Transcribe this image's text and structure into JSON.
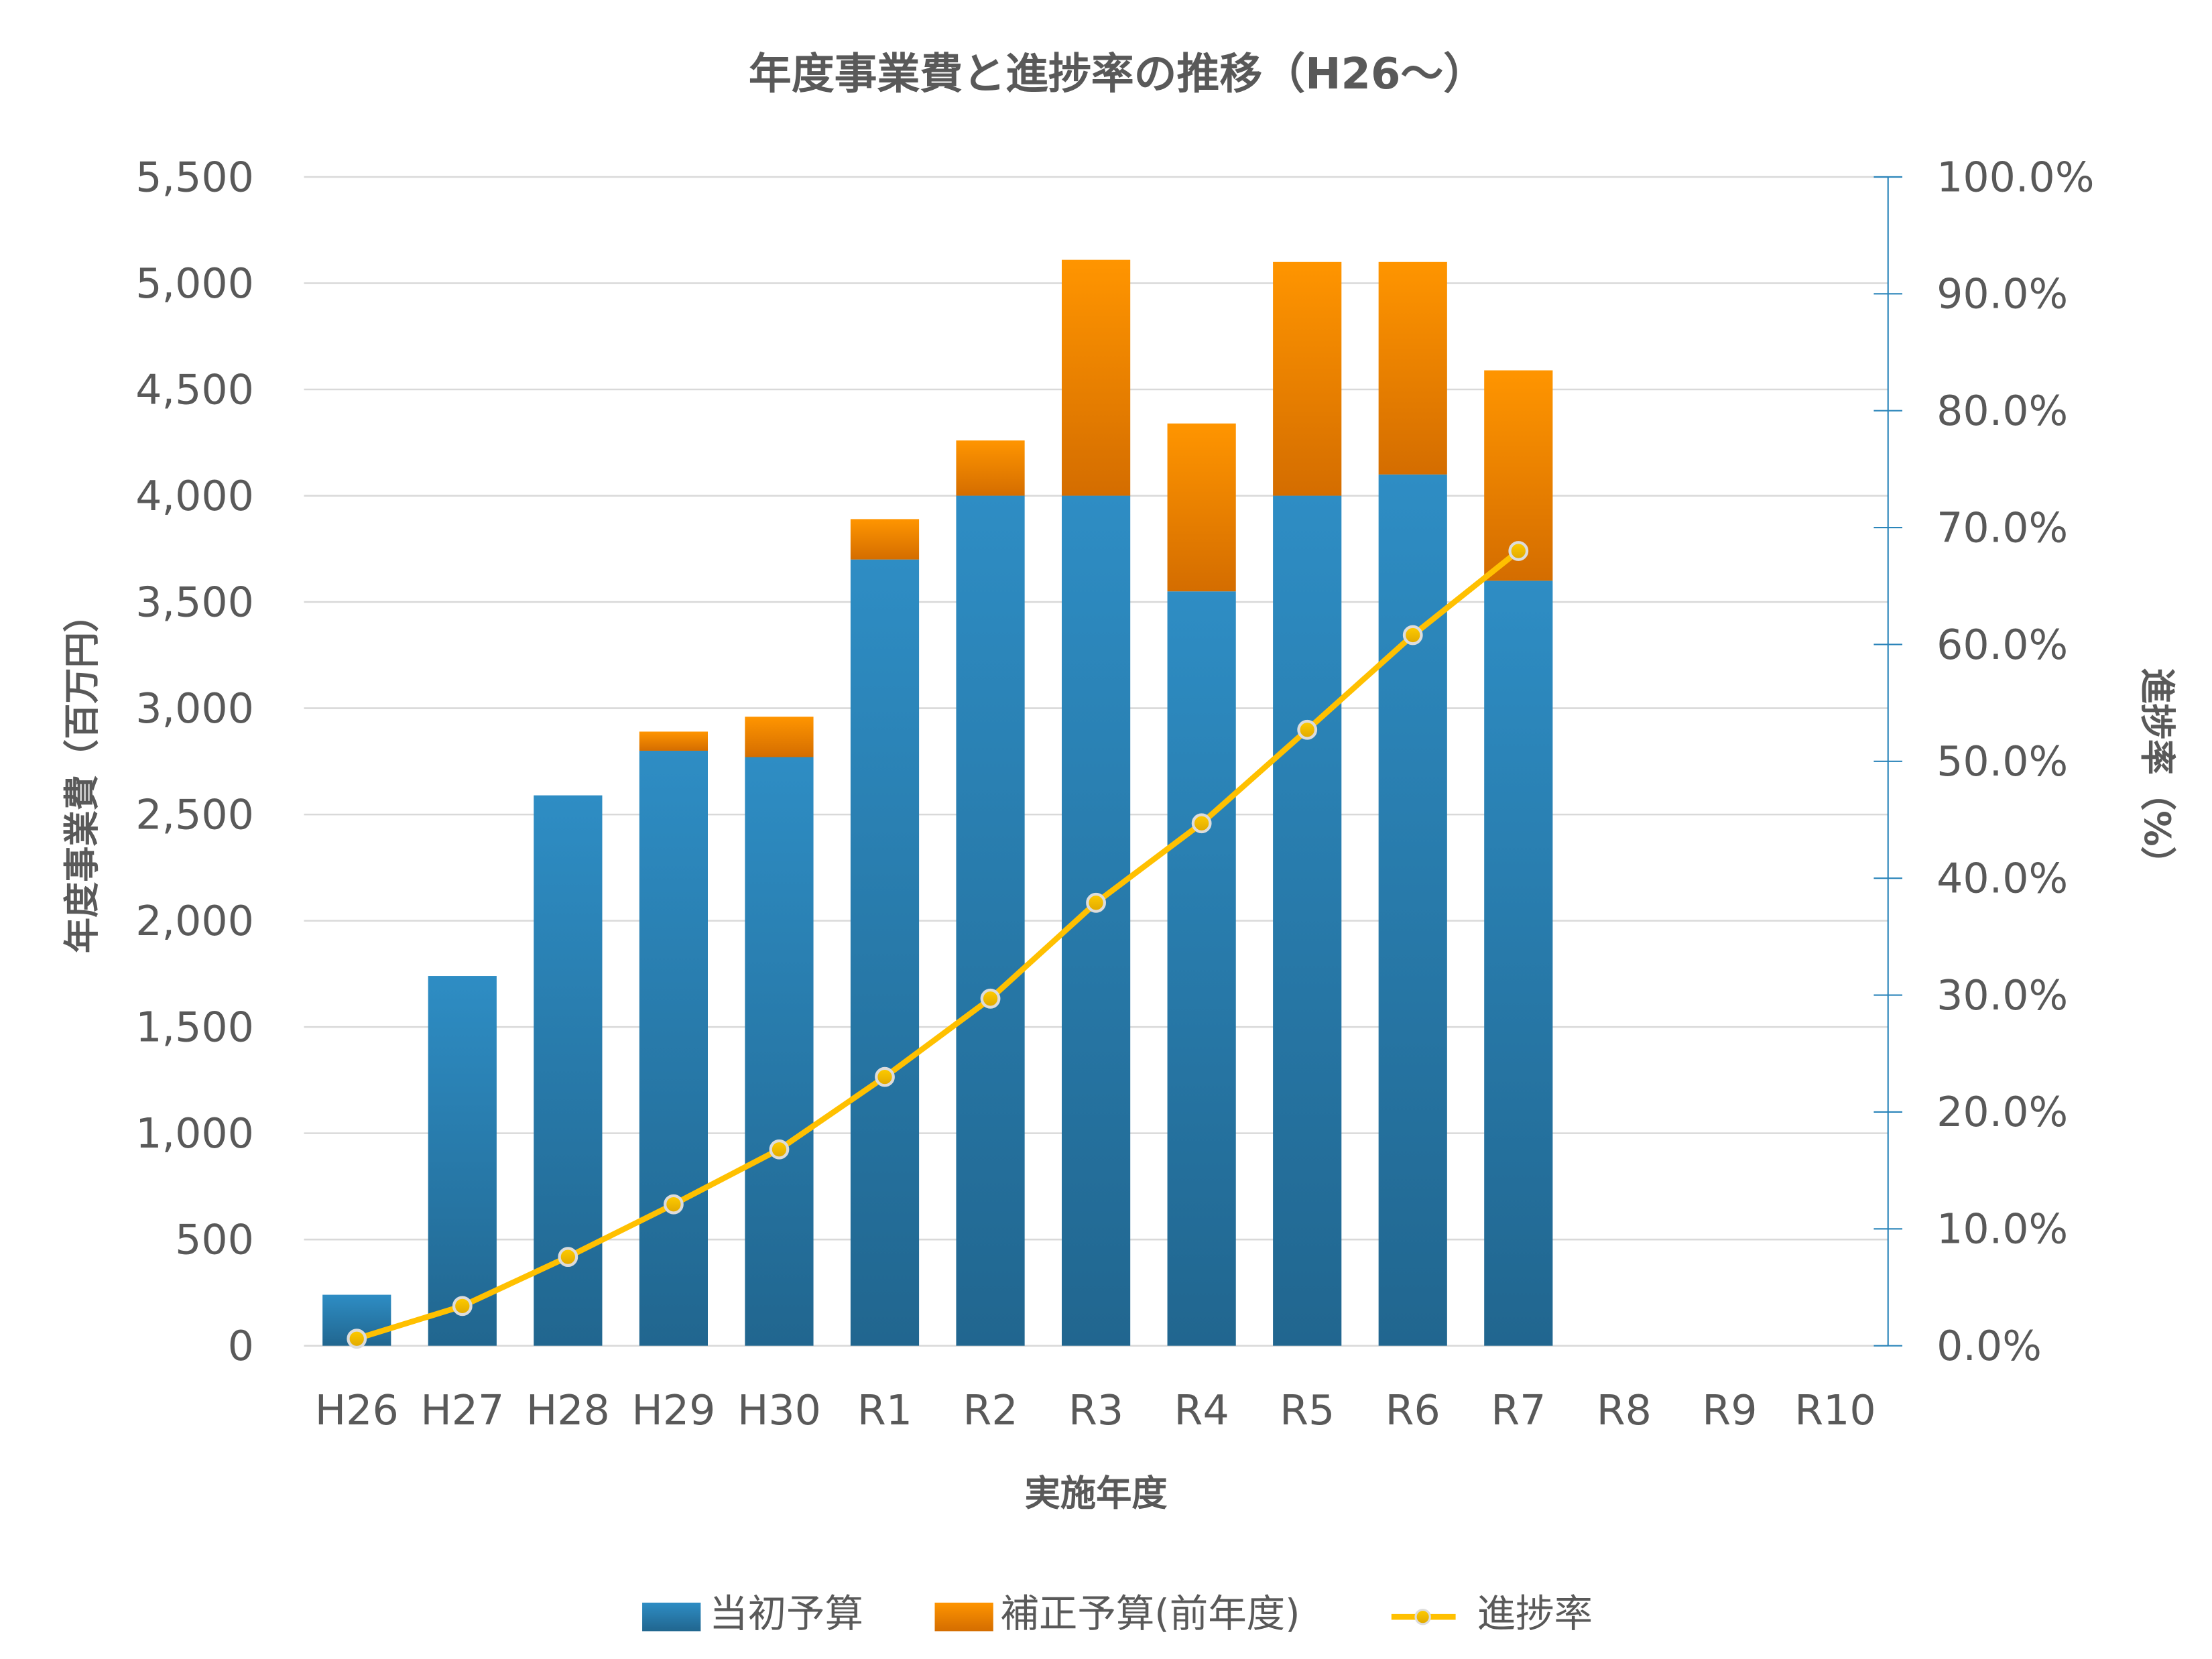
{
  "chart_data": {
    "type": "bar+line",
    "title": "年度事業費と進捗率の推移（H26～）",
    "xlabel": "実施年度",
    "ylabel": "年度事業費（百万円）",
    "y2label": "進捗率（%）",
    "categories": [
      "H26",
      "H27",
      "H28",
      "H29",
      "H30",
      "R1",
      "R2",
      "R3",
      "R4",
      "R5",
      "R6",
      "R7",
      "R8",
      "R9",
      "R10"
    ],
    "ylim": [
      0,
      5500
    ],
    "yticks": [
      "0",
      "500",
      "1,000",
      "1,500",
      "2,000",
      "2,500",
      "3,000",
      "3,500",
      "4,000",
      "4,500",
      "5,000",
      "5,500"
    ],
    "y2lim": [
      0,
      100
    ],
    "y2ticks": [
      "0.0%",
      "10.0%",
      "20.0%",
      "30.0%",
      "40.0%",
      "50.0%",
      "60.0%",
      "70.0%",
      "80.0%",
      "90.0%",
      "100.0%"
    ],
    "grid": true,
    "legend_position": "bottom",
    "series": [
      {
        "name": "当初予算",
        "type": "bar",
        "stacked": true,
        "color": "#2b85ba",
        "values": [
          240,
          1740,
          2590,
          2800,
          2770,
          3700,
          4000,
          4000,
          3550,
          4000,
          4100,
          3600,
          null,
          null,
          null
        ]
      },
      {
        "name": "補正予算(前年度)",
        "type": "bar",
        "stacked": true,
        "color": "#f08a00",
        "values": [
          0,
          0,
          0,
          90,
          190,
          190,
          260,
          1110,
          790,
          1100,
          1000,
          990,
          null,
          null,
          null
        ]
      },
      {
        "name": "進捗率",
        "type": "line",
        "axis": "right",
        "color": "#ffc000",
        "values": [
          0.6,
          3.4,
          7.6,
          12.1,
          16.8,
          23.0,
          29.7,
          37.9,
          44.7,
          52.7,
          60.8,
          68.0,
          null,
          null,
          null
        ]
      }
    ]
  }
}
